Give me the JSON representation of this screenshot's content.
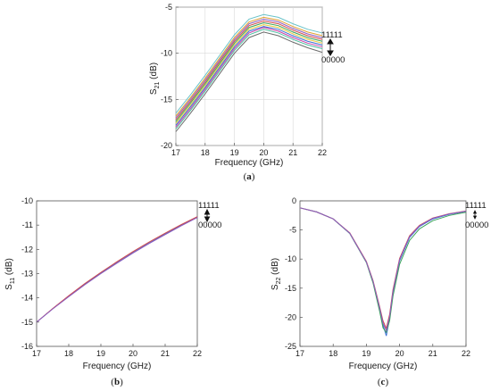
{
  "chart_data": [
    {
      "id": "a",
      "type": "line",
      "caption_letter": "a",
      "xlabel": "Frequency (GHz)",
      "ylabel_main": "S",
      "ylabel_sub": "21",
      "ylabel_unit": " (dB)",
      "xlim": [
        17,
        22
      ],
      "ylim": [
        -20,
        -5
      ],
      "xticks": [
        17,
        18,
        19,
        20,
        21,
        22
      ],
      "yticks": [
        -20,
        -15,
        -10,
        -5
      ],
      "grid": true,
      "annotation_top": "11111",
      "annotation_bottom": "00000",
      "x": [
        17,
        17.5,
        18,
        18.5,
        19,
        19.5,
        20,
        20.5,
        21,
        21.5,
        22
      ],
      "series": [
        {
          "color": "#69c3c9",
          "values": [
            -16.5,
            -14.5,
            -12.4,
            -10.2,
            -8.0,
            -6.3,
            -5.8,
            -6.1,
            -6.8,
            -7.4,
            -7.8
          ]
        },
        {
          "color": "#e0a030",
          "values": [
            -16.8,
            -14.8,
            -12.7,
            -10.5,
            -8.3,
            -6.6,
            -6.1,
            -6.4,
            -7.1,
            -7.7,
            -8.1
          ]
        },
        {
          "color": "#8c5fc0",
          "values": [
            -17.0,
            -15.0,
            -12.9,
            -10.7,
            -8.5,
            -6.8,
            -6.3,
            -6.6,
            -7.3,
            -7.9,
            -8.3
          ]
        },
        {
          "color": "#d14a4a",
          "values": [
            -17.2,
            -15.2,
            -13.1,
            -10.9,
            -8.7,
            -7.0,
            -6.5,
            -6.8,
            -7.5,
            -8.1,
            -8.5
          ]
        },
        {
          "color": "#3aa35a",
          "values": [
            -17.4,
            -15.4,
            -13.3,
            -11.1,
            -8.9,
            -7.2,
            -6.7,
            -7.0,
            -7.7,
            -8.3,
            -8.7
          ]
        },
        {
          "color": "#e8c83a",
          "values": [
            -17.6,
            -15.6,
            -13.5,
            -11.3,
            -9.1,
            -7.4,
            -6.9,
            -7.2,
            -7.9,
            -8.5,
            -8.9
          ]
        },
        {
          "color": "#3b6fd6",
          "values": [
            -17.8,
            -15.8,
            -13.7,
            -11.5,
            -9.3,
            -7.6,
            -7.1,
            -7.4,
            -8.1,
            -8.7,
            -9.1
          ]
        },
        {
          "color": "#c93fa5",
          "values": [
            -18.0,
            -16.0,
            -13.9,
            -11.7,
            -9.5,
            -7.8,
            -7.2,
            -7.6,
            -8.3,
            -8.9,
            -9.3
          ]
        },
        {
          "color": "#4dbfa0",
          "values": [
            -18.2,
            -16.2,
            -14.1,
            -11.9,
            -9.7,
            -8.0,
            -7.4,
            -7.8,
            -8.5,
            -9.1,
            -9.5
          ]
        },
        {
          "color": "#6b6b6b",
          "values": [
            -18.5,
            -16.5,
            -14.4,
            -12.2,
            -10.0,
            -8.3,
            -7.7,
            -8.1,
            -8.8,
            -9.4,
            -9.9
          ]
        }
      ]
    },
    {
      "id": "b",
      "type": "line",
      "caption_letter": "b",
      "xlabel": "Frequency (GHz)",
      "ylabel_main": "S",
      "ylabel_sub": "11",
      "ylabel_unit": " (dB)",
      "xlim": [
        17,
        22
      ],
      "ylim": [
        -16,
        -10
      ],
      "xticks": [
        17,
        18,
        19,
        20,
        21,
        22
      ],
      "yticks": [
        -16,
        -15,
        -14,
        -13,
        -12,
        -11,
        -10
      ],
      "grid": false,
      "annotation_top": "11111",
      "annotation_bottom": "00000",
      "x": [
        17,
        17.5,
        18,
        18.5,
        19,
        19.5,
        20,
        20.5,
        21,
        21.5,
        22
      ],
      "series": [
        {
          "color": "#3b6fd6",
          "values": [
            -15.0,
            -14.45,
            -13.93,
            -13.44,
            -12.98,
            -12.55,
            -12.13,
            -11.74,
            -11.37,
            -11.01,
            -10.67
          ]
        },
        {
          "color": "#d14a4a",
          "values": [
            -15.0,
            -14.44,
            -13.91,
            -13.41,
            -12.95,
            -12.51,
            -12.09,
            -11.7,
            -11.33,
            -10.98,
            -10.65
          ]
        },
        {
          "color": "#8c5fc0",
          "values": [
            -15.0,
            -14.46,
            -13.95,
            -13.46,
            -13.0,
            -12.57,
            -12.15,
            -11.76,
            -11.39,
            -11.03,
            -10.69
          ]
        }
      ]
    },
    {
      "id": "c",
      "type": "line",
      "caption_letter": "c",
      "xlabel": "Frequency (GHz)",
      "ylabel_main": "S",
      "ylabel_sub": "22",
      "ylabel_unit": " (dB)",
      "xlim": [
        17,
        22
      ],
      "ylim": [
        -25,
        0
      ],
      "xticks": [
        17,
        18,
        19,
        20,
        21,
        22
      ],
      "yticks": [
        -25,
        -20,
        -15,
        -10,
        -5,
        0
      ],
      "grid": false,
      "annotation_top": "11111",
      "annotation_bottom": "00000",
      "x": [
        17,
        17.5,
        18,
        18.5,
        19,
        19.2,
        19.4,
        19.5,
        19.6,
        19.7,
        19.8,
        20,
        20.3,
        20.6,
        21,
        21.5,
        22
      ],
      "series": [
        {
          "color": "#3b6fd6",
          "values": [
            -1.2,
            -1.9,
            -3.1,
            -5.6,
            -10.5,
            -13.9,
            -18.6,
            -21.3,
            -23.2,
            -20.2,
            -15.8,
            -10.3,
            -6.3,
            -4.4,
            -3.1,
            -2.3,
            -1.8
          ]
        },
        {
          "color": "#3aa35a",
          "values": [
            -1.2,
            -1.9,
            -3.1,
            -5.6,
            -10.6,
            -14.1,
            -19.0,
            -21.8,
            -22.6,
            -20.6,
            -16.4,
            -10.9,
            -6.8,
            -4.8,
            -3.4,
            -2.5,
            -1.95
          ]
        },
        {
          "color": "#d14a4a",
          "values": [
            -1.2,
            -1.9,
            -3.1,
            -5.5,
            -10.4,
            -13.7,
            -18.2,
            -20.6,
            -21.9,
            -19.5,
            -15.3,
            -9.9,
            -6.0,
            -4.2,
            -2.95,
            -2.2,
            -1.75
          ]
        },
        {
          "color": "#8c5fc0",
          "values": [
            -1.2,
            -1.9,
            -3.1,
            -5.55,
            -10.5,
            -13.8,
            -18.4,
            -21.0,
            -22.3,
            -19.9,
            -15.6,
            -10.1,
            -6.15,
            -4.3,
            -3.0,
            -2.25,
            -1.78
          ]
        }
      ]
    }
  ]
}
